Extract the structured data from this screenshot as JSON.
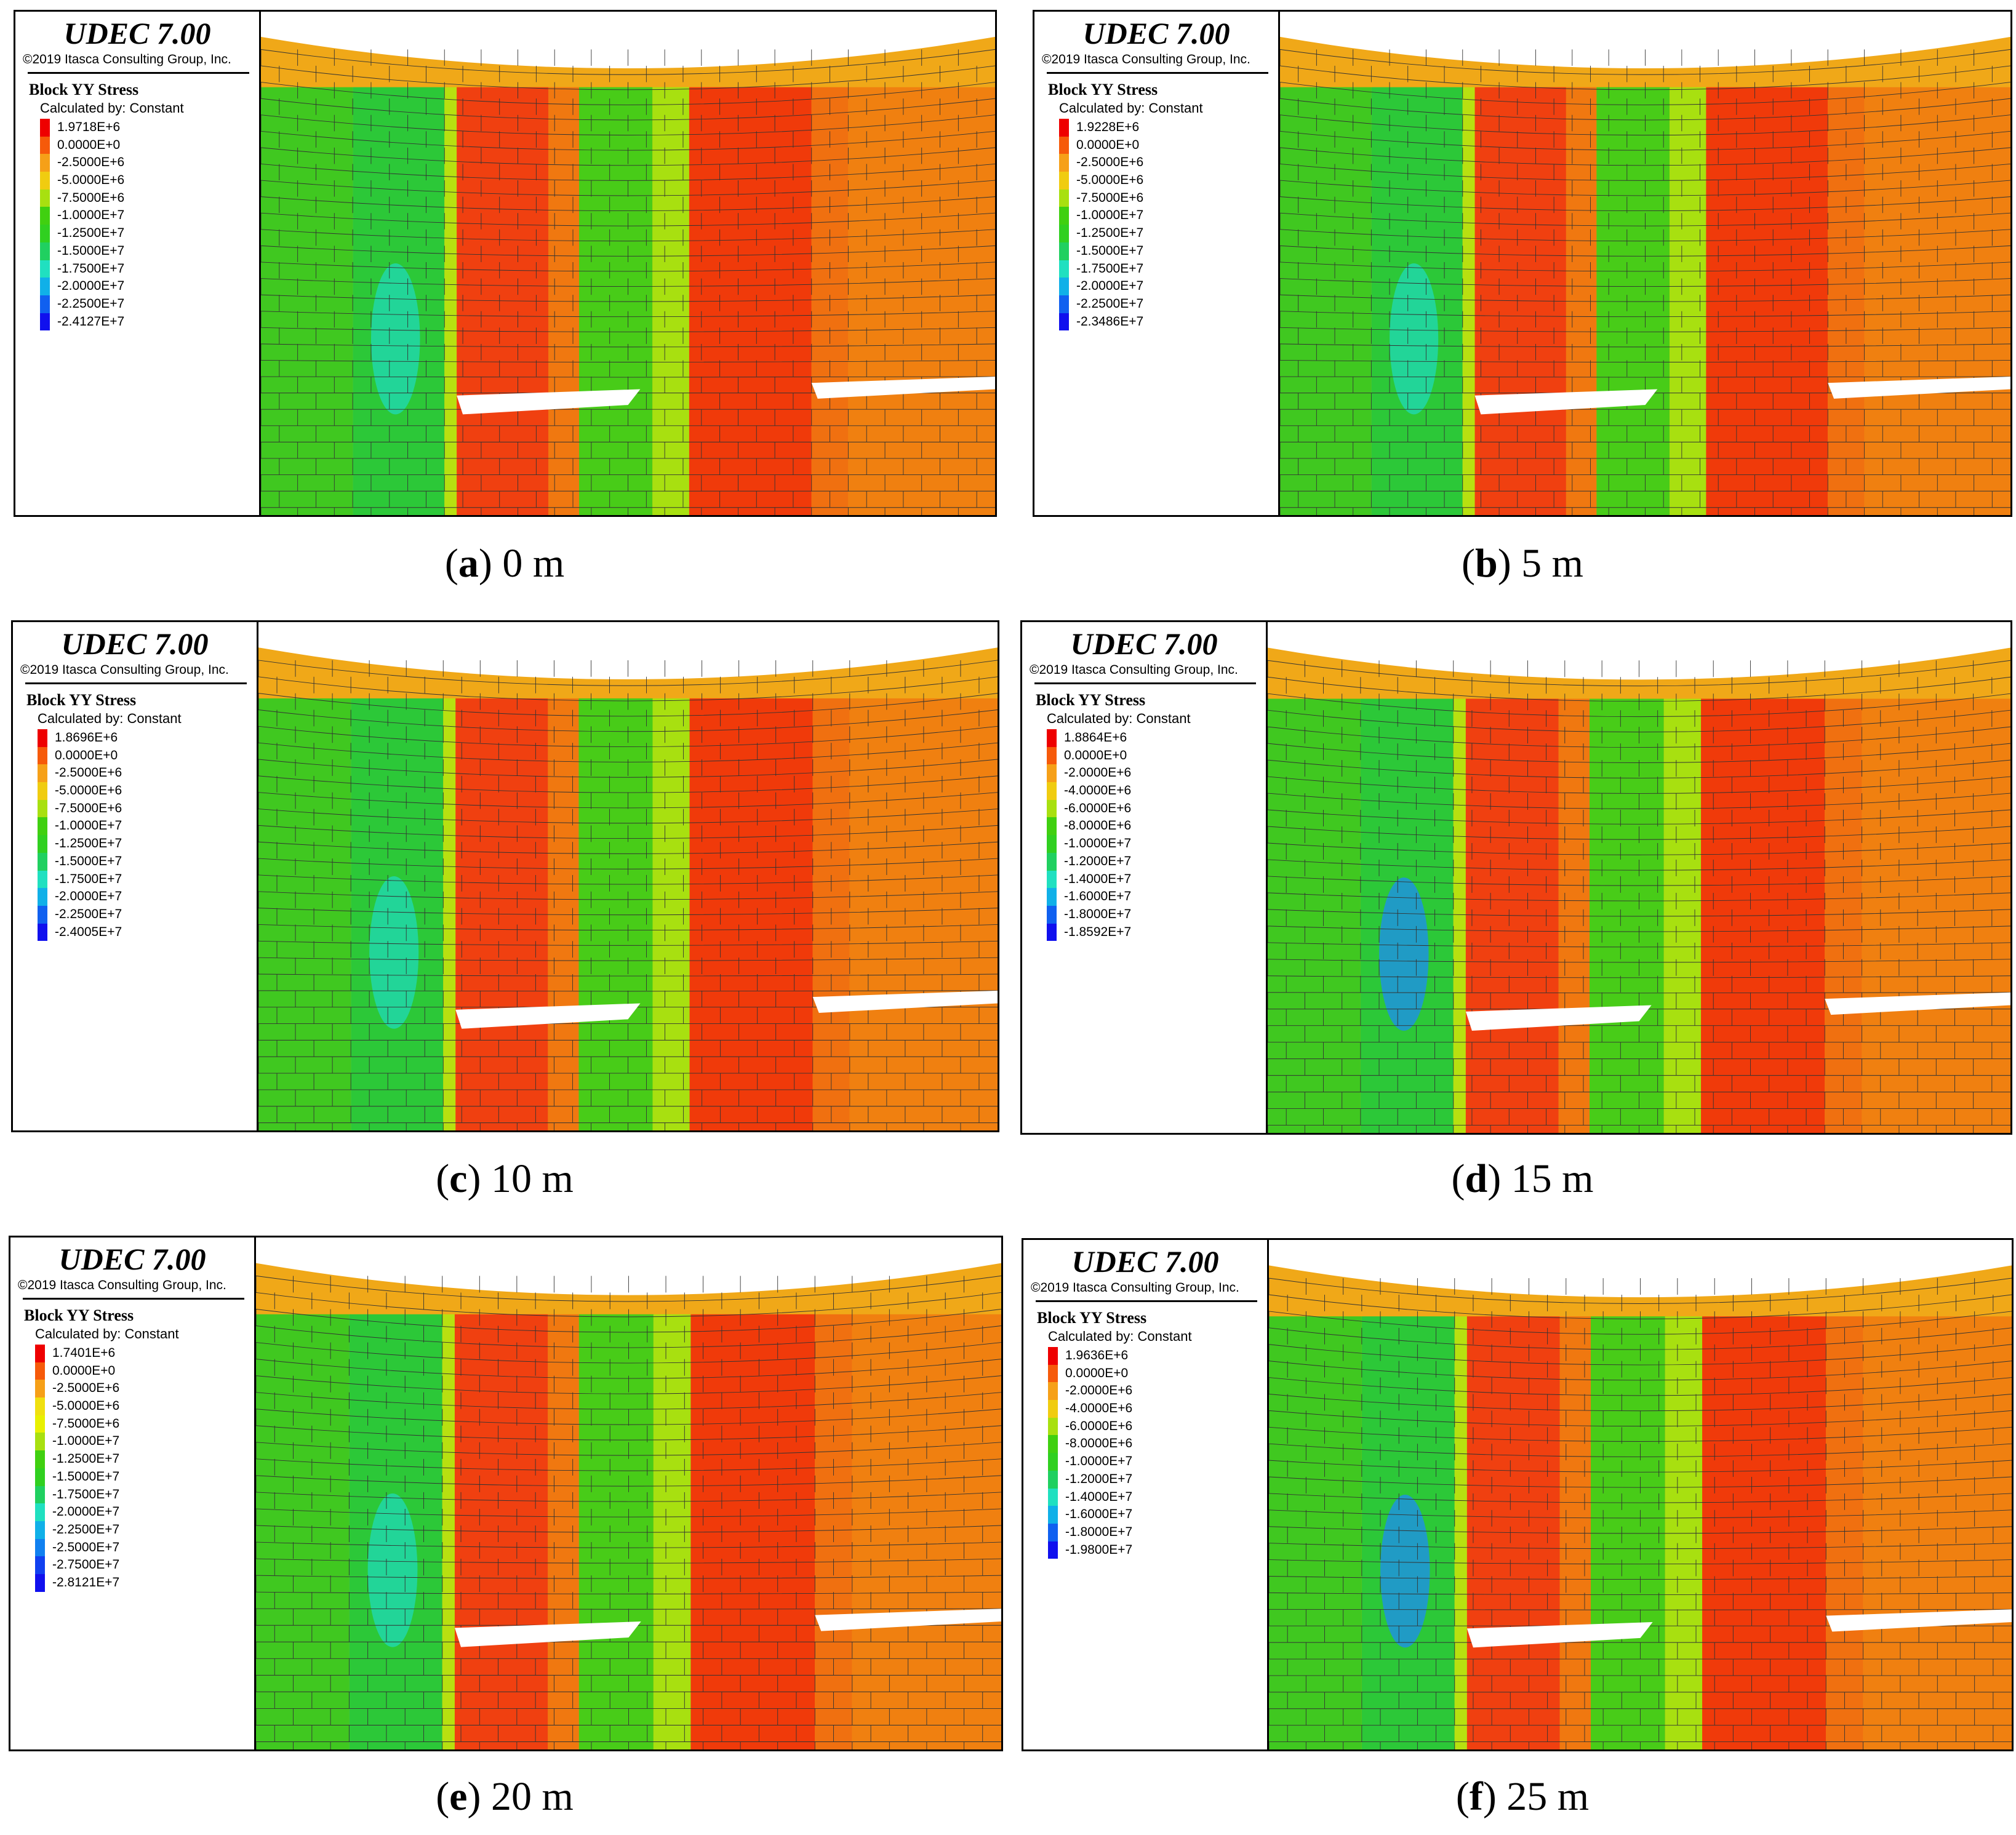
{
  "panels": [
    {
      "software": "UDEC 7.00",
      "copyright": "©2019 Itasca Consulting Group, Inc.",
      "legend_title": "Block YY Stress",
      "legend_subtitle": "Calculated by: Constant",
      "legend_values": [
        "1.9718E+6",
        "0.0000E+0",
        "-2.5000E+6",
        "-5.0000E+6",
        "-7.5000E+6",
        "-1.0000E+7",
        "-1.2500E+7",
        "-1.5000E+7",
        "-1.7500E+7",
        "-2.0000E+7",
        "-2.2500E+7",
        "-2.4127E+7"
      ],
      "legend_colors": [
        "#ee0000",
        "#f65a0a",
        "#f6a018",
        "#f0cc10",
        "#a8e010",
        "#40d010",
        "#30d020",
        "#20d060",
        "#20e0c0",
        "#10b0e8",
        "#1060f0",
        "#1010ee"
      ],
      "caption_letter": "a",
      "caption_rest": " 0 m"
    },
    {
      "software": "UDEC 7.00",
      "copyright": "©2019 Itasca Consulting Group, Inc.",
      "legend_title": "Block YY Stress",
      "legend_subtitle": "Calculated by: Constant",
      "legend_values": [
        "1.9228E+6",
        "0.0000E+0",
        "-2.5000E+6",
        "-5.0000E+6",
        "-7.5000E+6",
        "-1.0000E+7",
        "-1.2500E+7",
        "-1.5000E+7",
        "-1.7500E+7",
        "-2.0000E+7",
        "-2.2500E+7",
        "-2.3486E+7"
      ],
      "legend_colors": [
        "#ee0000",
        "#f65a0a",
        "#f6a018",
        "#f0cc10",
        "#a8e010",
        "#40d010",
        "#30d020",
        "#20d060",
        "#20e0c0",
        "#10b0e8",
        "#1060f0",
        "#1010ee"
      ],
      "caption_letter": "b",
      "caption_rest": " 5 m"
    },
    {
      "software": "UDEC 7.00",
      "copyright": "©2019 Itasca Consulting Group, Inc.",
      "legend_title": "Block YY Stress",
      "legend_subtitle": "Calculated by: Constant",
      "legend_values": [
        "1.8696E+6",
        "0.0000E+0",
        "-2.5000E+6",
        "-5.0000E+6",
        "-7.5000E+6",
        "-1.0000E+7",
        "-1.2500E+7",
        "-1.5000E+7",
        "-1.7500E+7",
        "-2.0000E+7",
        "-2.2500E+7",
        "-2.4005E+7"
      ],
      "legend_colors": [
        "#ee0000",
        "#f65a0a",
        "#f6a018",
        "#f0cc10",
        "#a8e010",
        "#40d010",
        "#30d020",
        "#20d060",
        "#20e0c0",
        "#10b0e8",
        "#1060f0",
        "#1010ee"
      ],
      "caption_letter": "c",
      "caption_rest": " 10 m"
    },
    {
      "software": "UDEC 7.00",
      "copyright": "©2019 Itasca Consulting Group, Inc.",
      "legend_title": "Block YY Stress",
      "legend_subtitle": "Calculated by: Constant",
      "legend_values": [
        "1.8864E+6",
        "0.0000E+0",
        "-2.0000E+6",
        "-4.0000E+6",
        "-6.0000E+6",
        "-8.0000E+6",
        "-1.0000E+7",
        "-1.2000E+7",
        "-1.4000E+7",
        "-1.6000E+7",
        "-1.8000E+7",
        "-1.8592E+7"
      ],
      "legend_colors": [
        "#ee0000",
        "#f65a0a",
        "#f6a018",
        "#f0cc10",
        "#a8e010",
        "#40d010",
        "#30d020",
        "#20d060",
        "#20e0c0",
        "#10b0e8",
        "#1060f0",
        "#1010ee"
      ],
      "caption_letter": "d",
      "caption_rest": " 15 m"
    },
    {
      "software": "UDEC 7.00",
      "copyright": "©2019 Itasca Consulting Group, Inc.",
      "legend_title": "Block YY Stress",
      "legend_subtitle": "Calculated by: Constant",
      "legend_values": [
        "1.7401E+6",
        "0.0000E+0",
        "-2.5000E+6",
        "-5.0000E+6",
        "-7.5000E+6",
        "-1.0000E+7",
        "-1.2500E+7",
        "-1.5000E+7",
        "-1.7500E+7",
        "-2.0000E+7",
        "-2.2500E+7",
        "-2.5000E+7",
        "-2.7500E+7",
        "-2.8121E+7"
      ],
      "legend_colors": [
        "#ee0000",
        "#f65a0a",
        "#f6a018",
        "#f0e010",
        "#e8f000",
        "#a8e010",
        "#40d010",
        "#30d020",
        "#20d060",
        "#20e0c0",
        "#10b0e8",
        "#1080f0",
        "#1040f0",
        "#1010ee"
      ],
      "caption_letter": "e",
      "caption_rest": " 20 m"
    },
    {
      "software": "UDEC 7.00",
      "copyright": "©2019 Itasca Consulting Group, Inc.",
      "legend_title": "Block YY Stress",
      "legend_subtitle": "Calculated by: Constant",
      "legend_values": [
        "1.9636E+6",
        "0.0000E+0",
        "-2.0000E+6",
        "-4.0000E+6",
        "-6.0000E+6",
        "-8.0000E+6",
        "-1.0000E+7",
        "-1.2000E+7",
        "-1.4000E+7",
        "-1.6000E+7",
        "-1.8000E+7",
        "-1.9800E+7"
      ],
      "legend_colors": [
        "#ee0000",
        "#f65a0a",
        "#f6a018",
        "#f0cc10",
        "#a8e010",
        "#40d010",
        "#30d020",
        "#20d060",
        "#20e0c0",
        "#10b0e8",
        "#1060f0",
        "#1010ee"
      ],
      "caption_letter": "f",
      "caption_rest": " 25 m"
    }
  ]
}
